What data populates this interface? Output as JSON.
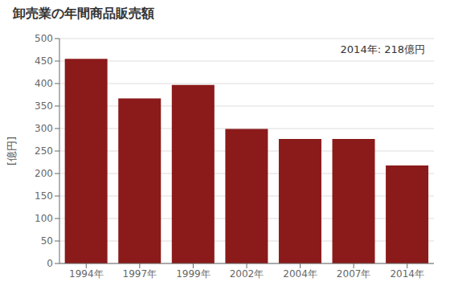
{
  "chart_data": {
    "type": "bar",
    "title": "卸売業の年間商品販売額",
    "ylabel": "[億円]",
    "annotation": "2014年: 218億円",
    "categories": [
      "1994年",
      "1997年",
      "1999年",
      "2002年",
      "2004年",
      "2007年",
      "2014年"
    ],
    "values": [
      455,
      367,
      397,
      299,
      277,
      277,
      218
    ],
    "color": "#8B1A1A",
    "ylim": [
      0,
      500
    ],
    "yticks": [
      0,
      50,
      100,
      150,
      200,
      250,
      300,
      350,
      400,
      450,
      500
    ],
    "grid": true
  }
}
